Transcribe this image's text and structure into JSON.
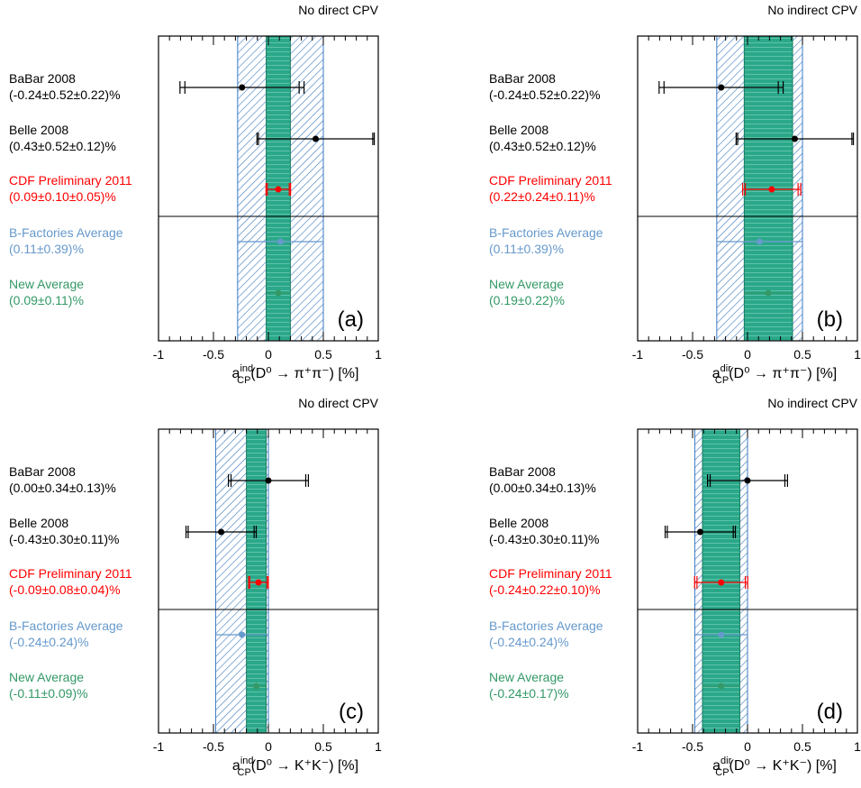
{
  "colors": {
    "measurement": "#000000",
    "cdf": "#ff0000",
    "bfactories": "#6699cc",
    "newavg": "#339966",
    "band_green": "#2aa889",
    "band_blue_line": "#3a78c0",
    "band_green_line": "#1a7a63"
  },
  "chart_data": [
    {
      "id": "a",
      "type": "forest",
      "header": "No direct CPV",
      "panel_label": "(a)",
      "xlabel": {
        "base": "a",
        "sup": "ind",
        "sub": "CP",
        "rest": "(D⁰ → π⁺π⁻) [%]"
      },
      "xlim": [
        -1,
        1
      ],
      "xticks": [
        "-1",
        "-0.5",
        "0",
        "0.5",
        "1"
      ],
      "blue_band": [
        -0.28,
        0.5
      ],
      "green_band": [
        -0.02,
        0.2
      ],
      "rows": [
        {
          "name": "BaBar 2008",
          "result": "(-0.24±0.52±0.22)%",
          "color_key": "measurement",
          "value": -0.24,
          "stat": 0.52,
          "syst": 0.22
        },
        {
          "name": "Belle 2008",
          "result": "(0.43±0.52±0.12)%",
          "color_key": "measurement",
          "value": 0.43,
          "stat": 0.52,
          "syst": 0.12
        },
        {
          "name": "CDF Preliminary 2011",
          "result": "(0.09±0.10±0.05)%",
          "color_key": "cdf",
          "value": 0.09,
          "stat": 0.1,
          "syst": 0.05
        },
        {
          "name": "B-Factories Average",
          "result": "(0.11±0.39)%",
          "color_key": "bfactories",
          "value": 0.11,
          "err": 0.39
        },
        {
          "name": "New Average",
          "result": "(0.09±0.11)%",
          "color_key": "newavg",
          "value": 0.09,
          "err": 0.11
        }
      ]
    },
    {
      "id": "b",
      "type": "forest",
      "header": "No indirect CPV",
      "panel_label": "(b)",
      "xlabel": {
        "base": "a",
        "sup": "dir",
        "sub": "CP",
        "rest": "(D⁰ → π⁺π⁻) [%]"
      },
      "xlim": [
        -1,
        1
      ],
      "xticks": [
        "-1",
        "-0.5",
        "0",
        "0.5",
        "1"
      ],
      "blue_band": [
        -0.28,
        0.5
      ],
      "green_band": [
        -0.03,
        0.41
      ],
      "rows": [
        {
          "name": "BaBar 2008",
          "result": "(-0.24±0.52±0.22)%",
          "color_key": "measurement",
          "value": -0.24,
          "stat": 0.52,
          "syst": 0.22
        },
        {
          "name": "Belle 2008",
          "result": "(0.43±0.52±0.12)%",
          "color_key": "measurement",
          "value": 0.43,
          "stat": 0.52,
          "syst": 0.12
        },
        {
          "name": "CDF Preliminary 2011",
          "result": "(0.22±0.24±0.11)%",
          "color_key": "cdf",
          "value": 0.22,
          "stat": 0.24,
          "syst": 0.11
        },
        {
          "name": "B-Factories Average",
          "result": "(0.11±0.39)%",
          "color_key": "bfactories",
          "value": 0.11,
          "err": 0.39
        },
        {
          "name": "New Average",
          "result": "(0.19±0.22)%",
          "color_key": "newavg",
          "value": 0.19,
          "err": 0.22
        }
      ]
    },
    {
      "id": "c",
      "type": "forest",
      "header": "No direct CPV",
      "panel_label": "(c)",
      "xlabel": {
        "base": "a",
        "sup": "ind",
        "sub": "CP",
        "rest": "(D⁰ → K⁺K⁻) [%]"
      },
      "xlim": [
        -1,
        1
      ],
      "xticks": [
        "-1",
        "-0.5",
        "0",
        "0.5",
        "1"
      ],
      "blue_band": [
        -0.48,
        0.0
      ],
      "green_band": [
        -0.2,
        -0.02
      ],
      "rows": [
        {
          "name": "BaBar 2008",
          "result": "(0.00±0.34±0.13)%",
          "color_key": "measurement",
          "value": 0.0,
          "stat": 0.34,
          "syst": 0.13
        },
        {
          "name": "Belle 2008",
          "result": "(-0.43±0.30±0.11)%",
          "color_key": "measurement",
          "value": -0.43,
          "stat": 0.3,
          "syst": 0.11
        },
        {
          "name": "CDF Preliminary 2011",
          "result": "(-0.09±0.08±0.04)%",
          "color_key": "cdf",
          "value": -0.09,
          "stat": 0.08,
          "syst": 0.04
        },
        {
          "name": "B-Factories Average",
          "result": "(-0.24±0.24)%",
          "color_key": "bfactories",
          "value": -0.24,
          "err": 0.24
        },
        {
          "name": "New Average",
          "result": "(-0.11±0.09)%",
          "color_key": "newavg",
          "value": -0.11,
          "err": 0.09
        }
      ]
    },
    {
      "id": "d",
      "type": "forest",
      "header": "No indirect CPV",
      "panel_label": "(d)",
      "xlabel": {
        "base": "a",
        "sup": "dir",
        "sub": "CP",
        "rest": "(D⁰ → K⁺K⁻) [%]"
      },
      "xlim": [
        -1,
        1
      ],
      "xticks": [
        "-1",
        "-0.5",
        "0",
        "0.5",
        "1"
      ],
      "blue_band": [
        -0.48,
        0.0
      ],
      "green_band": [
        -0.41,
        -0.07
      ],
      "rows": [
        {
          "name": "BaBar 2008",
          "result": "(0.00±0.34±0.13)%",
          "color_key": "measurement",
          "value": 0.0,
          "stat": 0.34,
          "syst": 0.13
        },
        {
          "name": "Belle 2008",
          "result": "(-0.43±0.30±0.11)%",
          "color_key": "measurement",
          "value": -0.43,
          "stat": 0.3,
          "syst": 0.11
        },
        {
          "name": "CDF Preliminary 2011",
          "result": "(-0.24±0.22±0.10)%",
          "color_key": "cdf",
          "value": -0.24,
          "stat": 0.22,
          "syst": 0.1
        },
        {
          "name": "B-Factories Average",
          "result": "(-0.24±0.24)%",
          "color_key": "bfactories",
          "value": -0.24,
          "err": 0.24
        },
        {
          "name": "New Average",
          "result": "(-0.24±0.17)%",
          "color_key": "newavg",
          "value": -0.24,
          "err": 0.17
        }
      ]
    }
  ]
}
